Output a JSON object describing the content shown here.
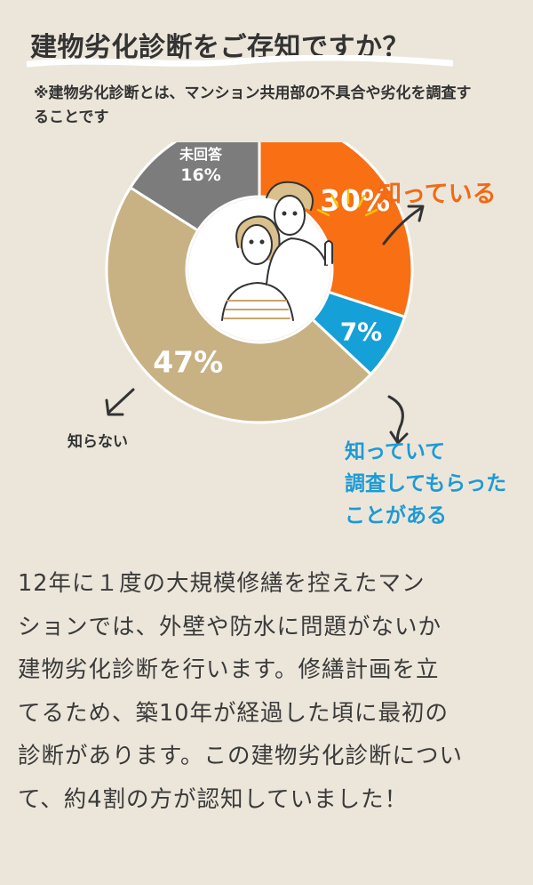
{
  "header": {
    "title": "建物劣化診断をご存知ですか？",
    "note": "※建物劣化診断とは、マンション共用部の不具合や劣化を調査することです"
  },
  "chart_data": {
    "type": "pie",
    "style": "donut",
    "slices": [
      {
        "label": "知っている",
        "value": 30,
        "value_label": "30%",
        "color": "#f86f14"
      },
      {
        "label": "知っていて調査してもらったことがある",
        "value": 7,
        "value_label": "7%",
        "color": "#16a0d8"
      },
      {
        "label": "知らない",
        "value": 47,
        "value_label": "47%",
        "color": "#c8b183"
      },
      {
        "label": "未回答",
        "value": 16,
        "value_label": "16%",
        "color": "#7c7c7c"
      }
    ]
  },
  "labels": {
    "know": "知っている",
    "unknown": "知らない",
    "checked_lines": [
      "知っていて",
      "調査してもらった",
      "ことがある"
    ],
    "no_answer_line1": "未回答",
    "no_answer_line2": "16%"
  },
  "body": {
    "lines": [
      "12年に１度の大規模修繕を控えたマン",
      "ションでは、外壁や防水に問題がないか",
      "建物劣化診断を行います。修繕計画を立",
      "てるため、築10年が経過した頃に最初の",
      "診断があります。この建物劣化診断につい",
      "て、約4割の方が認知していました！"
    ]
  }
}
